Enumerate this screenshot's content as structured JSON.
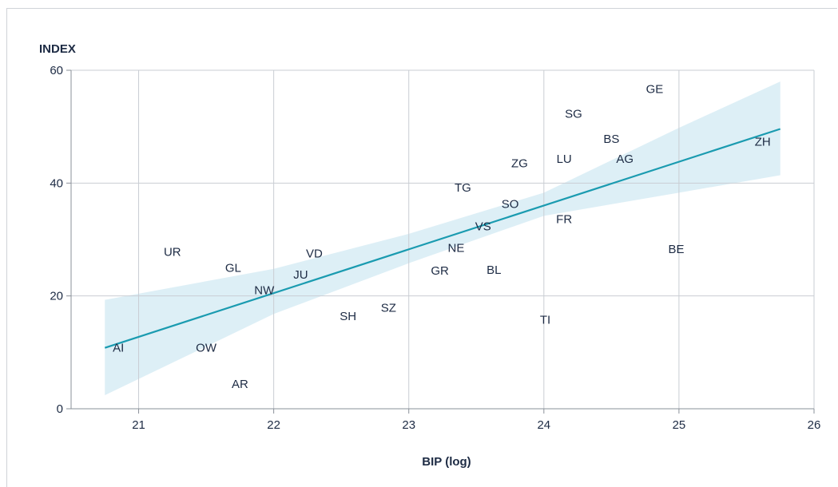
{
  "chart_data": {
    "type": "scatter",
    "title": "",
    "xlabel": "BIP (log)",
    "ylabel": "INDEX",
    "xlim": [
      20.5,
      26
    ],
    "ylim": [
      0,
      60
    ],
    "xticks": [
      "21",
      "22",
      "23",
      "24",
      "25",
      "26"
    ],
    "yticks": [
      "0",
      "20",
      "40",
      "60"
    ],
    "grid": true,
    "points": [
      {
        "label": "AI",
        "x": 20.85,
        "y": 10.8
      },
      {
        "label": "OW",
        "x": 21.5,
        "y": 10.8
      },
      {
        "label": "AR",
        "x": 21.75,
        "y": 4.4
      },
      {
        "label": "UR",
        "x": 21.25,
        "y": 27.8
      },
      {
        "label": "GL",
        "x": 21.7,
        "y": 25.0
      },
      {
        "label": "NW",
        "x": 21.93,
        "y": 21.0
      },
      {
        "label": "JU",
        "x": 22.2,
        "y": 23.8
      },
      {
        "label": "VD",
        "x": 22.3,
        "y": 27.5
      },
      {
        "label": "SH",
        "x": 22.55,
        "y": 16.4
      },
      {
        "label": "SZ",
        "x": 22.85,
        "y": 17.9
      },
      {
        "label": "GR",
        "x": 23.23,
        "y": 24.5
      },
      {
        "label": "NE",
        "x": 23.35,
        "y": 28.5
      },
      {
        "label": "TG",
        "x": 23.4,
        "y": 39.2
      },
      {
        "label": "VS",
        "x": 23.55,
        "y": 32.3
      },
      {
        "label": "BL",
        "x": 23.63,
        "y": 24.6
      },
      {
        "label": "SO",
        "x": 23.75,
        "y": 36.3
      },
      {
        "label": "ZG",
        "x": 23.82,
        "y": 43.5
      },
      {
        "label": "TI",
        "x": 24.01,
        "y": 15.8
      },
      {
        "label": "FR",
        "x": 24.15,
        "y": 33.6
      },
      {
        "label": "LU",
        "x": 24.15,
        "y": 44.3
      },
      {
        "label": "SG",
        "x": 24.22,
        "y": 52.3
      },
      {
        "label": "BS",
        "x": 24.5,
        "y": 47.8
      },
      {
        "label": "AG",
        "x": 24.6,
        "y": 44.3
      },
      {
        "label": "GE",
        "x": 24.82,
        "y": 56.7
      },
      {
        "label": "BE",
        "x": 24.98,
        "y": 28.3
      },
      {
        "label": "ZH",
        "x": 25.62,
        "y": 47.3
      }
    ],
    "regression_line": {
      "x": [
        20.75,
        25.75
      ],
      "y": [
        10.8,
        49.6
      ]
    },
    "confidence_band": {
      "x": [
        20.75,
        22.0,
        23.0,
        24.0,
        25.0,
        25.75
      ],
      "upper": [
        19.3,
        24.8,
        31.0,
        38.3,
        49.8,
        58.0
      ],
      "lower": [
        2.4,
        16.8,
        25.8,
        34.2,
        38.3,
        41.4
      ]
    },
    "colors": {
      "line": "#1a9bb0",
      "band": "#d9edf5",
      "grid": "#c9cdd3",
      "axis": "#8a9099",
      "text": "#1d2b44"
    }
  }
}
